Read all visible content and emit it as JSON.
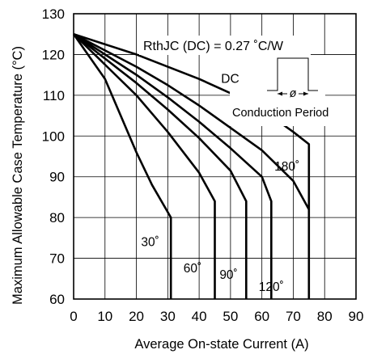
{
  "chart_data": {
    "type": "line",
    "xlabel": "Average On-state Current (A)",
    "ylabel": "Maximum Allowable Case Temperature (°C)",
    "xlim": [
      0,
      90
    ],
    "ylim": [
      60,
      130
    ],
    "xticks": [
      0,
      10,
      20,
      30,
      40,
      50,
      60,
      70,
      80,
      90
    ],
    "yticks": [
      60,
      70,
      80,
      90,
      100,
      110,
      120,
      130
    ],
    "grid": true,
    "annotation": "RthJC (DC) = 0.27 ˚C/W",
    "inset_label": "Conduction Period",
    "inset_symbol": "ø",
    "series": [
      {
        "name": "30˚",
        "x": [
          0,
          10,
          20,
          25,
          31,
          31
        ],
        "y": [
          125,
          114,
          96,
          88,
          80,
          60
        ]
      },
      {
        "name": "60˚",
        "x": [
          0,
          10,
          20,
          30,
          40,
          45,
          45
        ],
        "y": [
          125,
          117.5,
          110,
          101,
          91,
          84,
          60
        ]
      },
      {
        "name": "90˚",
        "x": [
          0,
          10,
          20,
          30,
          40,
          50,
          55,
          55
        ],
        "y": [
          125,
          119,
          113,
          106.5,
          99.5,
          91.5,
          84,
          60
        ]
      },
      {
        "name": "120˚",
        "x": [
          0,
          10,
          20,
          30,
          40,
          50,
          60,
          63,
          63
        ],
        "y": [
          125,
          120,
          115,
          109.5,
          103.5,
          97,
          90,
          84,
          60
        ]
      },
      {
        "name": "180˚",
        "x": [
          0,
          10,
          20,
          30,
          40,
          50,
          60,
          70,
          75
        ],
        "y": [
          125,
          121,
          117,
          112.5,
          107.5,
          102,
          96.5,
          89,
          82
        ]
      },
      {
        "name": "DC",
        "x": [
          0,
          10,
          20,
          30,
          40,
          50,
          60,
          70,
          75,
          75
        ],
        "y": [
          125,
          122.5,
          120,
          117,
          114,
          110.5,
          106.5,
          101,
          98,
          60
        ]
      }
    ]
  }
}
